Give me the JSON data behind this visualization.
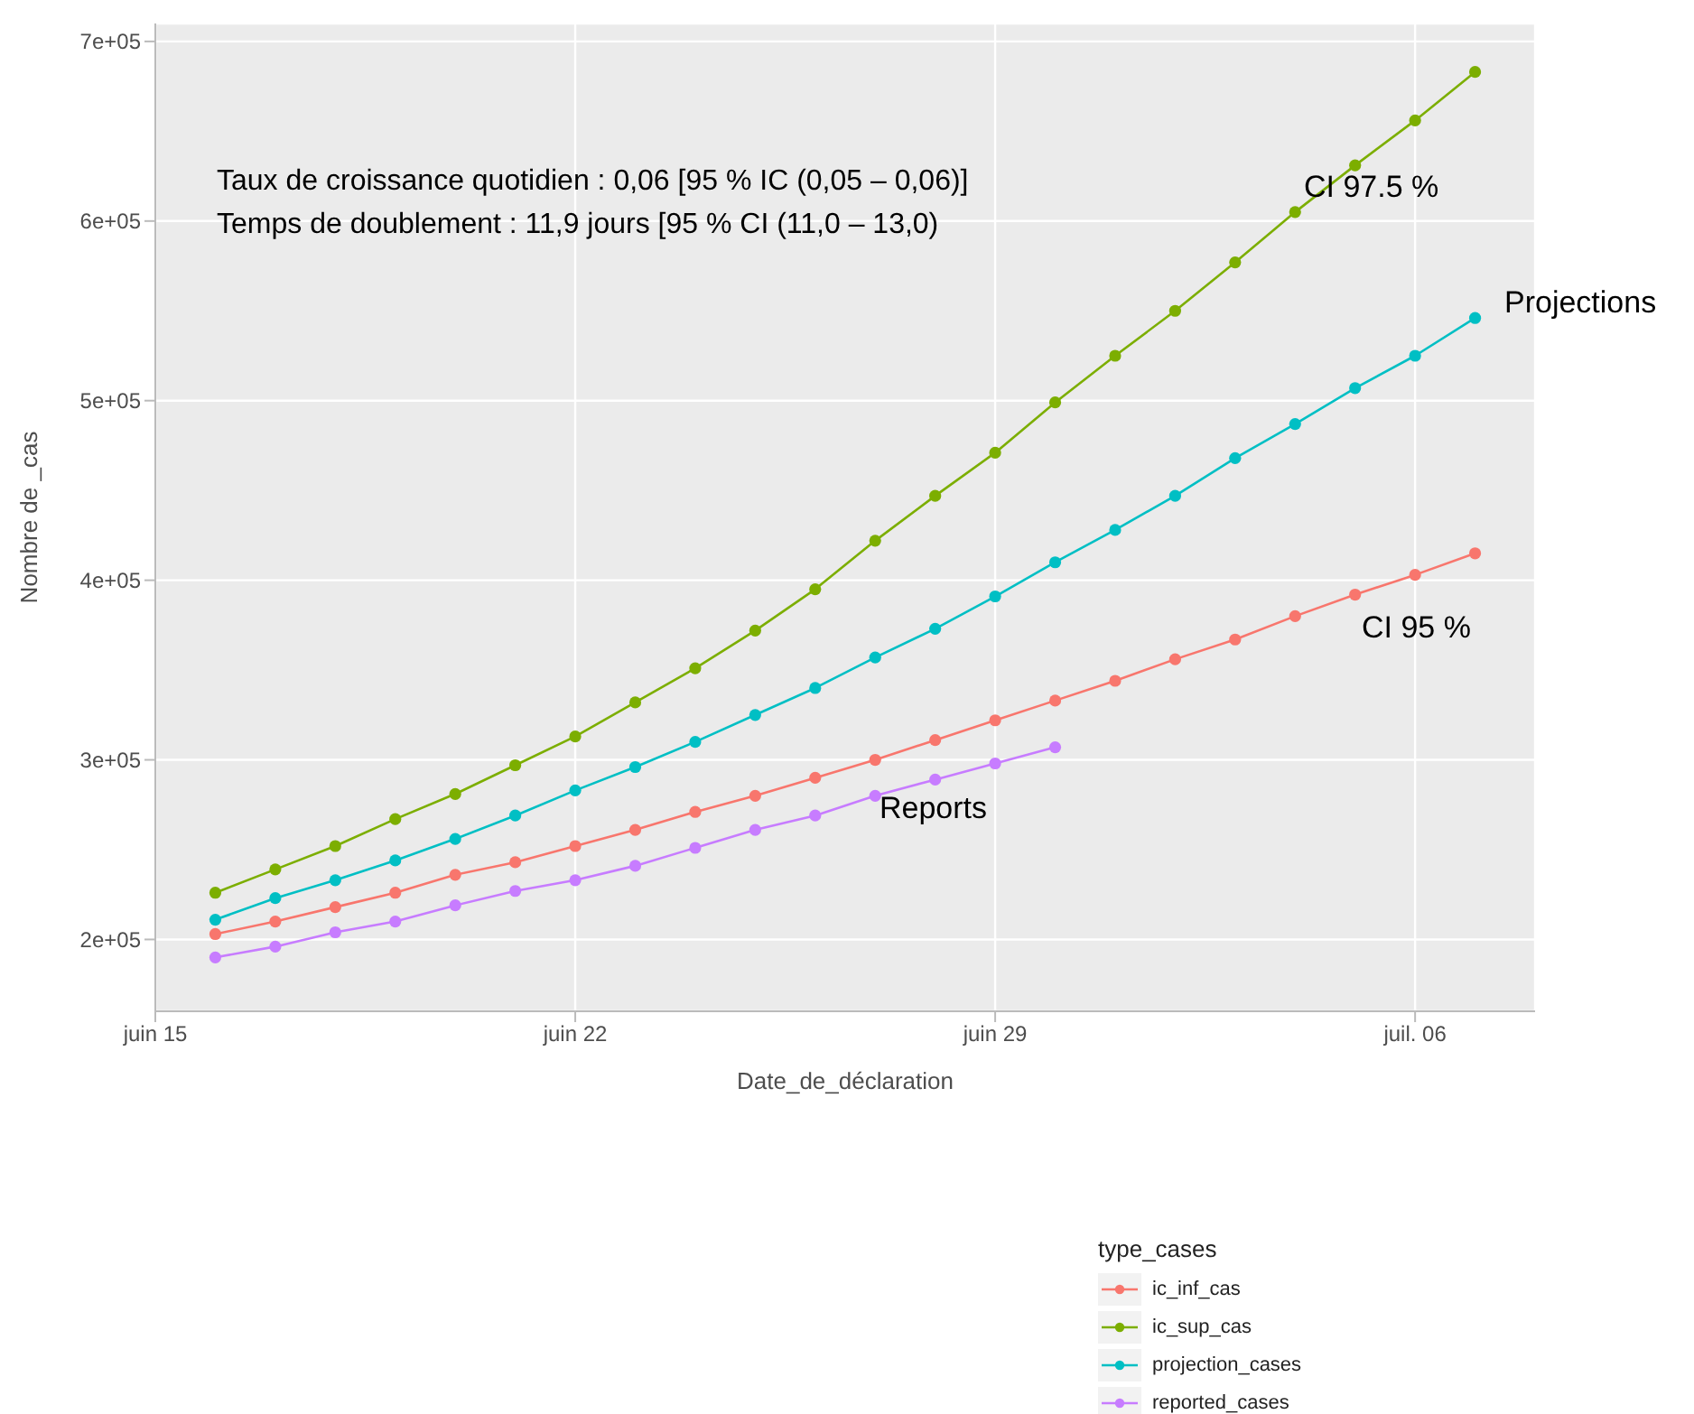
{
  "chart_data": {
    "type": "line",
    "xlabel": "Date_de_déclaration",
    "ylabel": "Nombre de _cas",
    "legend_title": "type_cases",
    "x": [
      "--06-16",
      "--06-17",
      "--06-18",
      "--06-19",
      "--06-20",
      "--06-21",
      "--06-22",
      "--06-23",
      "--06-24",
      "--06-25",
      "--06-26",
      "--06-27",
      "--06-28",
      "--06-29",
      "--06-30",
      "--07-01",
      "--07-02",
      "--07-03",
      "--07-04",
      "--07-05",
      "--07-06",
      "--07-07"
    ],
    "series": [
      {
        "name": "ic_inf_cas",
        "color": "#f8766d",
        "values": [
          203000,
          210000,
          218000,
          226000,
          236000,
          243000,
          252000,
          261000,
          271000,
          280000,
          290000,
          300000,
          311000,
          322000,
          333000,
          344000,
          356000,
          367000,
          380000,
          392000,
          403000,
          415000
        ]
      },
      {
        "name": "ic_sup_cas",
        "color": "#7cae00",
        "values": [
          226000,
          239000,
          252000,
          267000,
          281000,
          297000,
          313000,
          332000,
          351000,
          372000,
          395000,
          422000,
          447000,
          471000,
          499000,
          525000,
          550000,
          577000,
          605000,
          631000,
          656000,
          683000
        ]
      },
      {
        "name": "projection_cases",
        "color": "#00bfc4",
        "values": [
          211000,
          223000,
          233000,
          244000,
          256000,
          269000,
          283000,
          296000,
          310000,
          325000,
          340000,
          357000,
          373000,
          391000,
          410000,
          428000,
          447000,
          468000,
          487000,
          507000,
          525000,
          546000
        ]
      },
      {
        "name": "reported_cases",
        "color": "#c77cff",
        "x": [
          "--06-16",
          "--06-17",
          "--06-18",
          "--06-19",
          "--06-20",
          "--06-21",
          "--06-22",
          "--06-23",
          "--06-24",
          "--06-25",
          "--06-26",
          "--06-27",
          "--06-28",
          "--06-29",
          "--06-30"
        ],
        "values": [
          190000,
          196000,
          204000,
          210000,
          219000,
          227000,
          233000,
          241000,
          251000,
          261000,
          269000,
          280000,
          289000,
          298000,
          307000
        ]
      }
    ],
    "xlim": [
      "--06-15",
      "--07-08"
    ],
    "xticks": [
      {
        "value": "--06-15",
        "label": "juin 15"
      },
      {
        "value": "--06-22",
        "label": "juin 22"
      },
      {
        "value": "--06-29",
        "label": "juin 29"
      },
      {
        "value": "--07-06",
        "label": "juil. 06"
      }
    ],
    "ylim": [
      160000,
      710000
    ],
    "yticks": [
      {
        "value": 200000,
        "label": "2e+05"
      },
      {
        "value": 300000,
        "label": "3e+05"
      },
      {
        "value": 400000,
        "label": "4e+05"
      },
      {
        "value": 500000,
        "label": "5e+05"
      },
      {
        "value": 600000,
        "label": "6e+05"
      },
      {
        "value": 700000,
        "label": "7e+05"
      }
    ],
    "annotations": [
      "Taux de croissance quotidien : 0,06 [95 % IC (0,05 – 0,06)]",
      "Temps de doublement : 11,9 jours [95 % CI (11,0 – 13,0)",
      "CI 97.5 %",
      "Projections",
      "CI 95 %",
      "Reports"
    ],
    "grid": true,
    "legend": "bottom right",
    "marker": "circle",
    "line_style": "solid"
  }
}
